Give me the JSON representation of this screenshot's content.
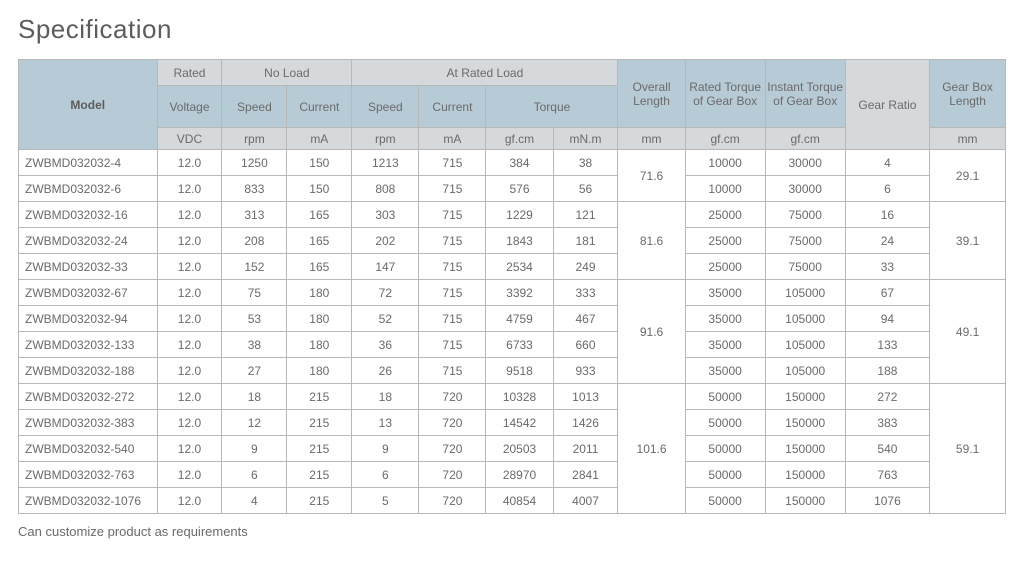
{
  "title": "Specification",
  "footnote": "Can customize product as requirements",
  "styling": {
    "header_top_bg": "#d5d9dc",
    "header_mid_bg": "#b7cbd6",
    "header_unit_bg": "#d5d9dc",
    "border_color": "#b8b8b8",
    "text_color": "#6a6a6a",
    "title_color": "#5c5c5c",
    "body_bg": "#ffffff",
    "font_size_body": 12,
    "font_size_title": 26
  },
  "header": {
    "model": "Model",
    "rated": "Rated",
    "no_load": "No Load",
    "at_rated_load": "At Rated Load",
    "voltage": "Voltage",
    "speed": "Speed",
    "current": "Current",
    "torque": "Torque",
    "overall_length": "Overall Length",
    "rated_torque_gb": "Rated Torque of Gear Box",
    "instant_torque_gb": "Instant Torque of Gear Box",
    "gear_ratio": "Gear Ratio",
    "gear_box_length": "Gear Box Length",
    "units": {
      "vdc": "VDC",
      "rpm": "rpm",
      "ma": "mA",
      "gfcm": "gf.cm",
      "mnm": "mN.m",
      "mm": "mm"
    }
  },
  "groups": [
    {
      "overall_length": "71.6",
      "gear_box_length": "29.1",
      "rows": [
        {
          "model": "ZWBMD032032-4",
          "voltage": "12.0",
          "nl_speed": "1250",
          "nl_current": "150",
          "rl_speed": "1213",
          "rl_current": "715",
          "torque_gfcm": "384",
          "torque_mnm": "38",
          "rated_torque": "10000",
          "instant_torque": "30000",
          "gear_ratio": "4"
        },
        {
          "model": "ZWBMD032032-6",
          "voltage": "12.0",
          "nl_speed": "833",
          "nl_current": "150",
          "rl_speed": "808",
          "rl_current": "715",
          "torque_gfcm": "576",
          "torque_mnm": "56",
          "rated_torque": "10000",
          "instant_torque": "30000",
          "gear_ratio": "6"
        }
      ]
    },
    {
      "overall_length": "81.6",
      "gear_box_length": "39.1",
      "rows": [
        {
          "model": "ZWBMD032032-16",
          "voltage": "12.0",
          "nl_speed": "313",
          "nl_current": "165",
          "rl_speed": "303",
          "rl_current": "715",
          "torque_gfcm": "1229",
          "torque_mnm": "121",
          "rated_torque": "25000",
          "instant_torque": "75000",
          "gear_ratio": "16"
        },
        {
          "model": "ZWBMD032032-24",
          "voltage": "12.0",
          "nl_speed": "208",
          "nl_current": "165",
          "rl_speed": "202",
          "rl_current": "715",
          "torque_gfcm": "1843",
          "torque_mnm": "181",
          "rated_torque": "25000",
          "instant_torque": "75000",
          "gear_ratio": "24"
        },
        {
          "model": "ZWBMD032032-33",
          "voltage": "12.0",
          "nl_speed": "152",
          "nl_current": "165",
          "rl_speed": "147",
          "rl_current": "715",
          "torque_gfcm": "2534",
          "torque_mnm": "249",
          "rated_torque": "25000",
          "instant_torque": "75000",
          "gear_ratio": "33"
        }
      ]
    },
    {
      "overall_length": "91.6",
      "gear_box_length": "49.1",
      "rows": [
        {
          "model": "ZWBMD032032-67",
          "voltage": "12.0",
          "nl_speed": "75",
          "nl_current": "180",
          "rl_speed": "72",
          "rl_current": "715",
          "torque_gfcm": "3392",
          "torque_mnm": "333",
          "rated_torque": "35000",
          "instant_torque": "105000",
          "gear_ratio": "67"
        },
        {
          "model": "ZWBMD032032-94",
          "voltage": "12.0",
          "nl_speed": "53",
          "nl_current": "180",
          "rl_speed": "52",
          "rl_current": "715",
          "torque_gfcm": "4759",
          "torque_mnm": "467",
          "rated_torque": "35000",
          "instant_torque": "105000",
          "gear_ratio": "94"
        },
        {
          "model": "ZWBMD032032-133",
          "voltage": "12.0",
          "nl_speed": "38",
          "nl_current": "180",
          "rl_speed": "36",
          "rl_current": "715",
          "torque_gfcm": "6733",
          "torque_mnm": "660",
          "rated_torque": "35000",
          "instant_torque": "105000",
          "gear_ratio": "133"
        },
        {
          "model": "ZWBMD032032-188",
          "voltage": "12.0",
          "nl_speed": "27",
          "nl_current": "180",
          "rl_speed": "26",
          "rl_current": "715",
          "torque_gfcm": "9518",
          "torque_mnm": "933",
          "rated_torque": "35000",
          "instant_torque": "105000",
          "gear_ratio": "188"
        }
      ]
    },
    {
      "overall_length": "101.6",
      "gear_box_length": "59.1",
      "rows": [
        {
          "model": "ZWBMD032032-272",
          "voltage": "12.0",
          "nl_speed": "18",
          "nl_current": "215",
          "rl_speed": "18",
          "rl_current": "720",
          "torque_gfcm": "10328",
          "torque_mnm": "1013",
          "rated_torque": "50000",
          "instant_torque": "150000",
          "gear_ratio": "272"
        },
        {
          "model": "ZWBMD032032-383",
          "voltage": "12.0",
          "nl_speed": "12",
          "nl_current": "215",
          "rl_speed": "13",
          "rl_current": "720",
          "torque_gfcm": "14542",
          "torque_mnm": "1426",
          "rated_torque": "50000",
          "instant_torque": "150000",
          "gear_ratio": "383"
        },
        {
          "model": "ZWBMD032032-540",
          "voltage": "12.0",
          "nl_speed": "9",
          "nl_current": "215",
          "rl_speed": "9",
          "rl_current": "720",
          "torque_gfcm": "20503",
          "torque_mnm": "2011",
          "rated_torque": "50000",
          "instant_torque": "150000",
          "gear_ratio": "540"
        },
        {
          "model": "ZWBMD032032-763",
          "voltage": "12.0",
          "nl_speed": "6",
          "nl_current": "215",
          "rl_speed": "6",
          "rl_current": "720",
          "torque_gfcm": "28970",
          "torque_mnm": "2841",
          "rated_torque": "50000",
          "instant_torque": "150000",
          "gear_ratio": "763"
        },
        {
          "model": "ZWBMD032032-1076",
          "voltage": "12.0",
          "nl_speed": "4",
          "nl_current": "215",
          "rl_speed": "5",
          "rl_current": "720",
          "torque_gfcm": "40854",
          "torque_mnm": "4007",
          "rated_torque": "50000",
          "instant_torque": "150000",
          "gear_ratio": "1076"
        }
      ]
    }
  ]
}
